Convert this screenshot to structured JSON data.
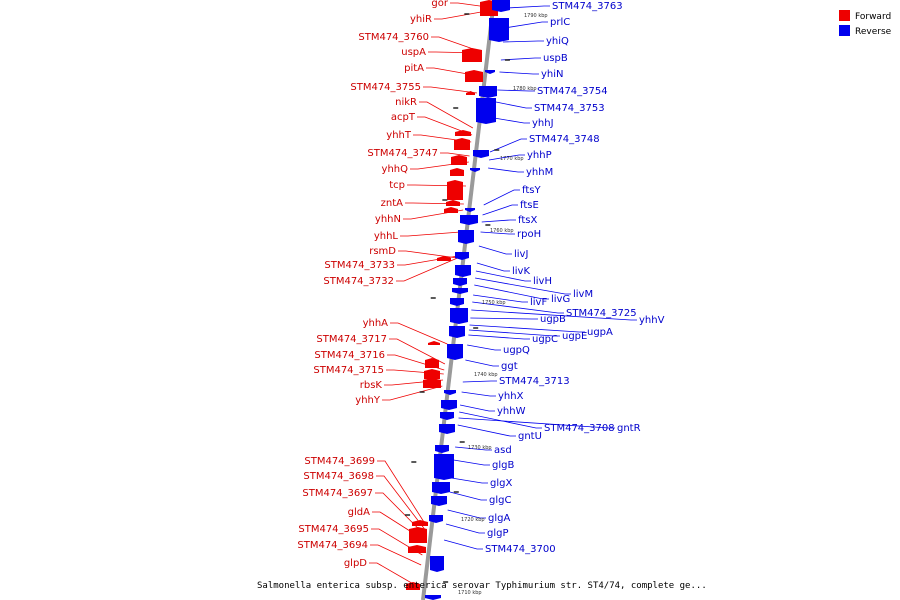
{
  "legend": [
    {
      "label": "Forward",
      "color": "#ee0000"
    },
    {
      "label": "Reverse",
      "color": "#0000ee"
    }
  ],
  "caption": "Salmonella enterica subsp. enterica serovar Typhimurium str. ST4/74, complete ge...",
  "colors": {
    "forward": "#ee0000",
    "reverse": "#0000ee",
    "backbone": "#9a9a9a",
    "connector": "#9a9a9a"
  },
  "tick_labels": [
    "1790 kbp",
    "1780 kbp",
    "1770 kbp",
    "1760 kbp",
    "1750 kbp",
    "1740 kbp",
    "1730 kbp",
    "1720 kbp",
    "1710 kbp"
  ],
  "forward_labels": [
    "gor",
    "yhiR",
    "STM474_3760",
    "uspA",
    "pitA",
    "STM474_3755",
    "nikR",
    "acpT",
    "yhhT",
    "STM474_3747",
    "yhhQ",
    "tcp",
    "zntA",
    "yhhN",
    "yhhL",
    "rsmD",
    "STM474_3733",
    "STM474_3732",
    "yhhA",
    "STM474_3717",
    "STM474_3716",
    "STM474_3715",
    "rbsK",
    "yhhY",
    "STM474_3699",
    "STM474_3698",
    "STM474_3697",
    "gldA",
    "STM474_3695",
    "STM474_3694",
    "glpD"
  ],
  "reverse_labels": [
    "STM474_3763",
    "prlC",
    "yhiQ",
    "uspB",
    "yhiN",
    "STM474_3754",
    "STM474_3753",
    "yhhJ",
    "STM474_3748",
    "yhhP",
    "yhhM",
    "ftsY",
    "ftsE",
    "ftsX",
    "rpoH",
    "livJ",
    "livK",
    "livH",
    "livM",
    "livG",
    "livF",
    "STM474_3725",
    "yhhV",
    "ugpB",
    "ugpA",
    "ugpE",
    "ugpC",
    "ugpQ",
    "ggt",
    "STM474_3713",
    "yhhX",
    "yhhW",
    "STM474_3708",
    "gntR",
    "gntU",
    "asd",
    "glgB",
    "glgX",
    "glgC",
    "glgA",
    "glgP",
    "STM474_3700"
  ]
}
